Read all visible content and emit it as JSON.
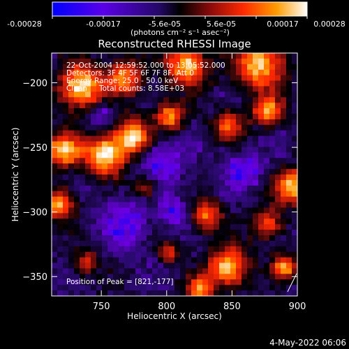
{
  "chart_data": {
    "type": "heatmap",
    "title": "Reconstructed RHESSI Image",
    "xlabel": "Heliocentric X (arcsec)",
    "ylabel": "Heliocentric Y (arcsec)",
    "x_ticks": [
      "750",
      "800",
      "850",
      "900"
    ],
    "y_ticks": [
      "-200",
      "-250",
      "-300",
      "-350"
    ],
    "xlim": [
      712,
      900
    ],
    "ylim": [
      -365,
      -177
    ],
    "colorbar": {
      "ticks": [
        "-0.00028",
        "-0.00017",
        "-5.6e-05",
        "5.6e-05",
        "0.00017",
        "0.00028"
      ],
      "range": [
        -0.00028,
        0.00028
      ],
      "units": "(photons cm⁻² s⁻¹ asec⁻²)",
      "colormap": [
        "#0000ff",
        "#6c00e0",
        "#2a0a6e",
        "#000000",
        "#8b1010",
        "#ff2800",
        "#ff9a00",
        "#ffffff"
      ]
    },
    "annotations": {
      "time": "22-Oct-2004 12:59:52.000 to 13:05:52.000",
      "detectors": "Detectors: 3F 4F 5F 6F 7F 8F, Att 0",
      "energy": "Energy Range: 25.0 - 50.0 keV",
      "clean": "Clean",
      "counts": "Total counts: 8.58E+03",
      "peak": "Position of Peak = [821,-177]"
    },
    "peak": [
      821,
      -177
    ],
    "footer_date": "4-May-2022 06:06"
  }
}
